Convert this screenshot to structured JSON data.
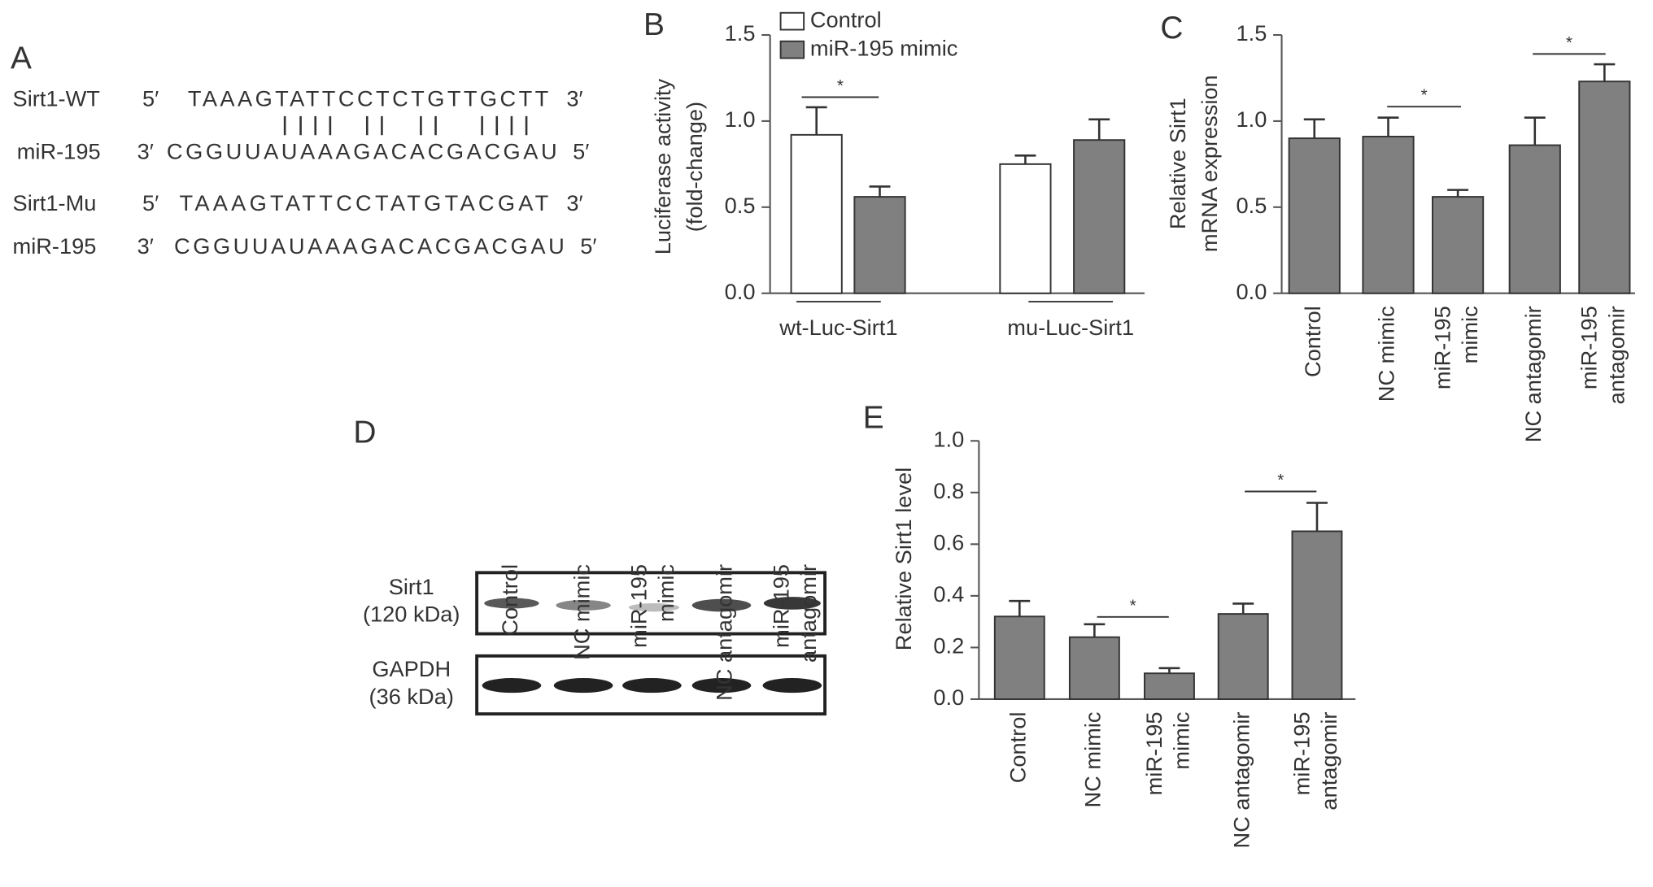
{
  "panel_a": {
    "label": "A",
    "rows": [
      {
        "name": "Sirt1-WT",
        "left": "5′",
        "seq": "TAAAGTATTCCTCTGTTGCTT",
        "right": "3′"
      },
      {
        "name": "miR-195",
        "left": "3′",
        "seq": "CGGUUAUAAAGACACGACGAU",
        "right": "5′"
      },
      {
        "name": "Sirt1-Mu",
        "left": "5′",
        "seq": "TAAAGTATTCCTATGTACGAT",
        "right": "3′"
      },
      {
        "name": "miR-195",
        "left": "3′",
        "seq": "CGGUUAUAAAGACACGACGAU",
        "right": "5′"
      }
    ]
  },
  "panel_d": {
    "label": "D",
    "lanes": [
      [
        "Control"
      ],
      [
        "NC mimic"
      ],
      [
        "miR-195",
        "mimic"
      ],
      [
        "NC antagomir"
      ],
      [
        "miR-195",
        "antagomir"
      ]
    ],
    "bands": [
      {
        "name": "Sirt1",
        "size": "(120 kDa)"
      },
      {
        "name": "GAPDH",
        "size": "(36 kDa)"
      }
    ]
  },
  "chart_data": [
    {
      "type": "bar",
      "label": "B",
      "ylabel": [
        "Luciferase activity",
        "(fold-change)"
      ],
      "categories": [
        [
          "wt-Luc-Sirt1"
        ],
        [
          "mu-Luc-Sirt1"
        ]
      ],
      "series": [
        {
          "name": "Control",
          "color": "#ffffff",
          "values": [
            0.92,
            0.75
          ],
          "errors": [
            0.16,
            0.05
          ]
        },
        {
          "name": "miR-195 mimic",
          "color": "#808080",
          "values": [
            0.56,
            0.89
          ],
          "errors": [
            0.06,
            0.12
          ]
        }
      ],
      "ylim": [
        0,
        1.5
      ],
      "yticks": [
        {
          "value": 0,
          "label": "0.0"
        },
        {
          "value": 0.5,
          "label": "0.5"
        },
        {
          "value": 1,
          "label": "1.0"
        },
        {
          "value": 1.5,
          "label": "1.5"
        }
      ],
      "annotations": [
        "*"
      ]
    },
    {
      "type": "bar",
      "label": "C",
      "ylabel": [
        "Relative Sirt1",
        "mRNA expression"
      ],
      "categories": [
        [
          "Control"
        ],
        [
          "NC mimic"
        ],
        [
          "miR-195",
          "mimic"
        ],
        [
          "NC antagomir"
        ],
        [
          "miR-195",
          "antagomir"
        ]
      ],
      "series": [
        {
          "color": "#808080",
          "values": [
            0.9,
            0.91,
            0.56,
            0.86,
            1.23
          ],
          "errors": [
            0.11,
            0.11,
            0.04,
            0.16,
            0.1
          ]
        }
      ],
      "ylim": [
        0,
        1.5
      ],
      "yticks": [
        {
          "value": 0,
          "label": "0.0"
        },
        {
          "value": 0.5,
          "label": "0.5"
        },
        {
          "value": 1,
          "label": "1.0"
        },
        {
          "value": 1.5,
          "label": "1.5"
        }
      ],
      "annotations": [
        "*",
        "*"
      ]
    },
    {
      "type": "bar",
      "label": "E",
      "ylabel": [
        "Relative Sirt1 level"
      ],
      "categories": [
        [
          "Control"
        ],
        [
          "NC mimic"
        ],
        [
          "miR-195",
          "mimic"
        ],
        [
          "NC antagomir"
        ],
        [
          "miR-195",
          "antagomir"
        ]
      ],
      "series": [
        {
          "color": "#808080",
          "values": [
            0.32,
            0.24,
            0.1,
            0.33,
            0.65
          ],
          "errors": [
            0.06,
            0.05,
            0.02,
            0.04,
            0.11
          ]
        }
      ],
      "ylim": [
        0,
        1
      ],
      "yticks": [
        {
          "value": 0,
          "label": "0.0"
        },
        {
          "value": 0.2,
          "label": "0.2"
        },
        {
          "value": 0.4,
          "label": "0.4"
        },
        {
          "value": 0.6,
          "label": "0.6"
        },
        {
          "value": 0.8,
          "label": "0.8"
        },
        {
          "value": 1,
          "label": "1.0"
        }
      ],
      "annotations": [
        "*",
        "*"
      ]
    }
  ]
}
